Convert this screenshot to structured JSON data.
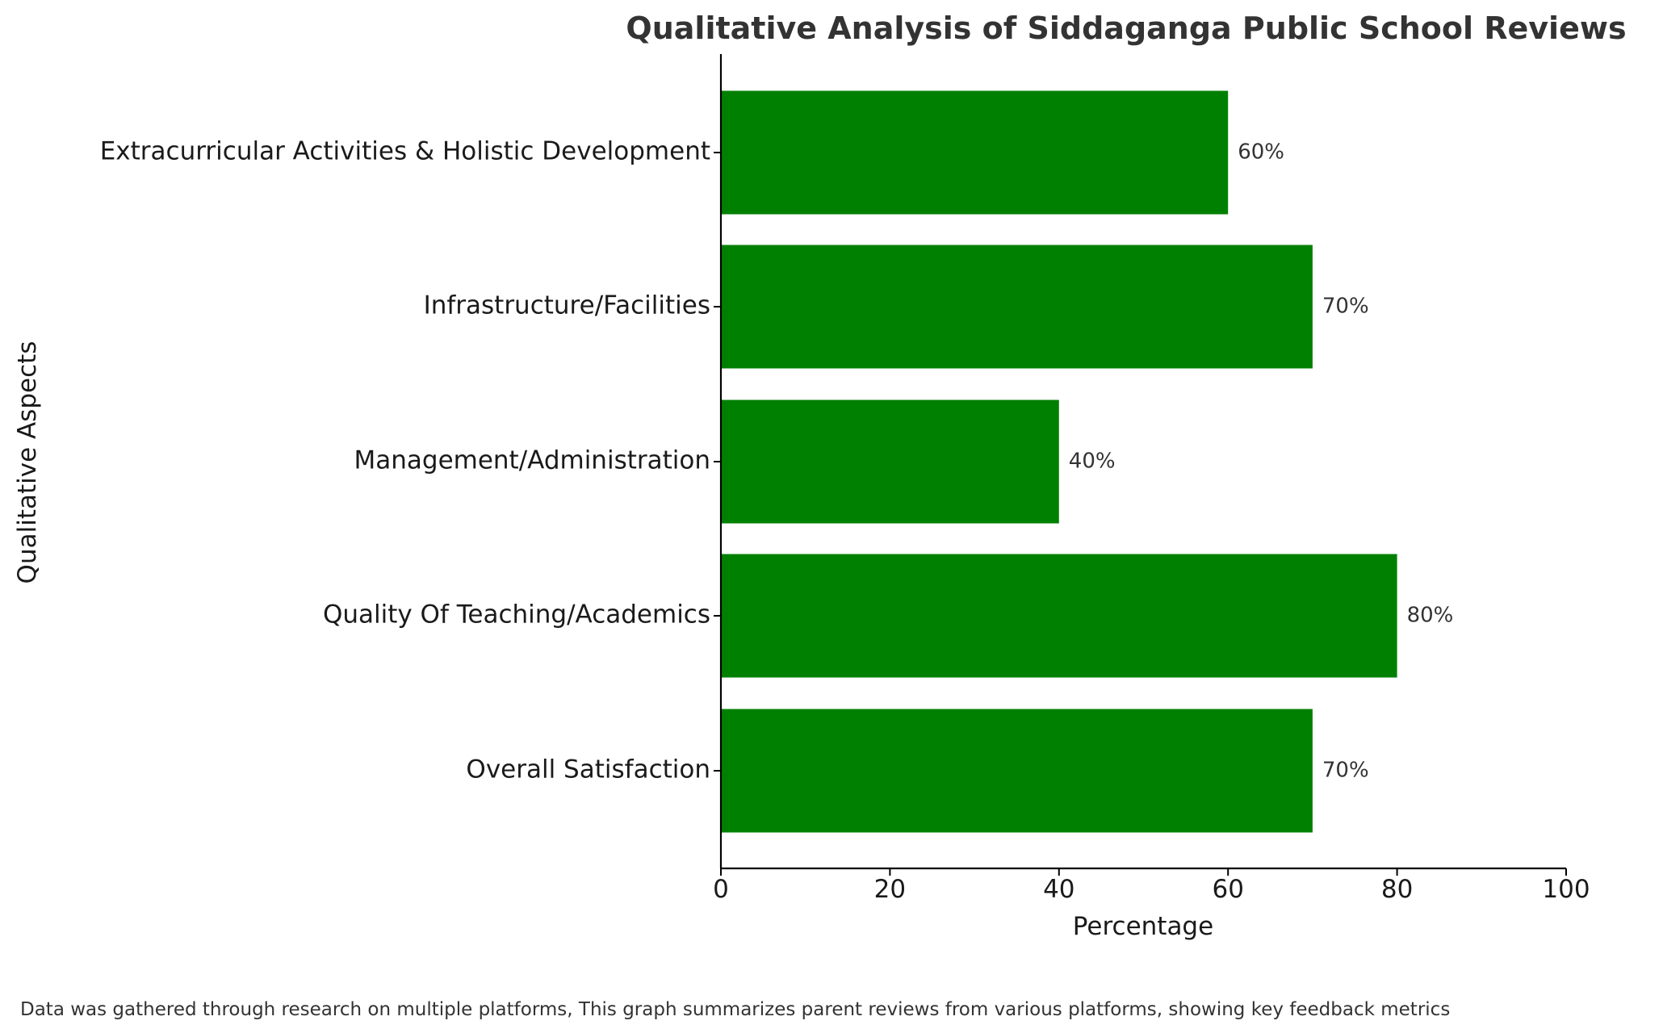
{
  "chart_data": {
    "type": "bar",
    "orientation": "horizontal",
    "title": "Qualitative Analysis of Siddaganga Public School Reviews",
    "xlabel": "Percentage",
    "ylabel": "Qualitative Aspects",
    "xlim": [
      0,
      100
    ],
    "xticks": [
      "0",
      "20",
      "40",
      "60",
      "80",
      "100"
    ],
    "grid": false,
    "categories": [
      "Overall Satisfaction",
      "Quality Of Teaching/Academics",
      "Management/Administration",
      "Infrastructure/Facilities",
      "Extracurricular Activities & Holistic Development"
    ],
    "values": [
      70,
      80,
      40,
      70,
      60
    ],
    "data_labels": [
      "70%",
      "80%",
      "40%",
      "70%",
      "60%"
    ],
    "bar_color": "#008000",
    "footnote": "Data was gathered through research on multiple platforms, This graph summarizes parent reviews from various platforms, showing key feedback metrics"
  }
}
